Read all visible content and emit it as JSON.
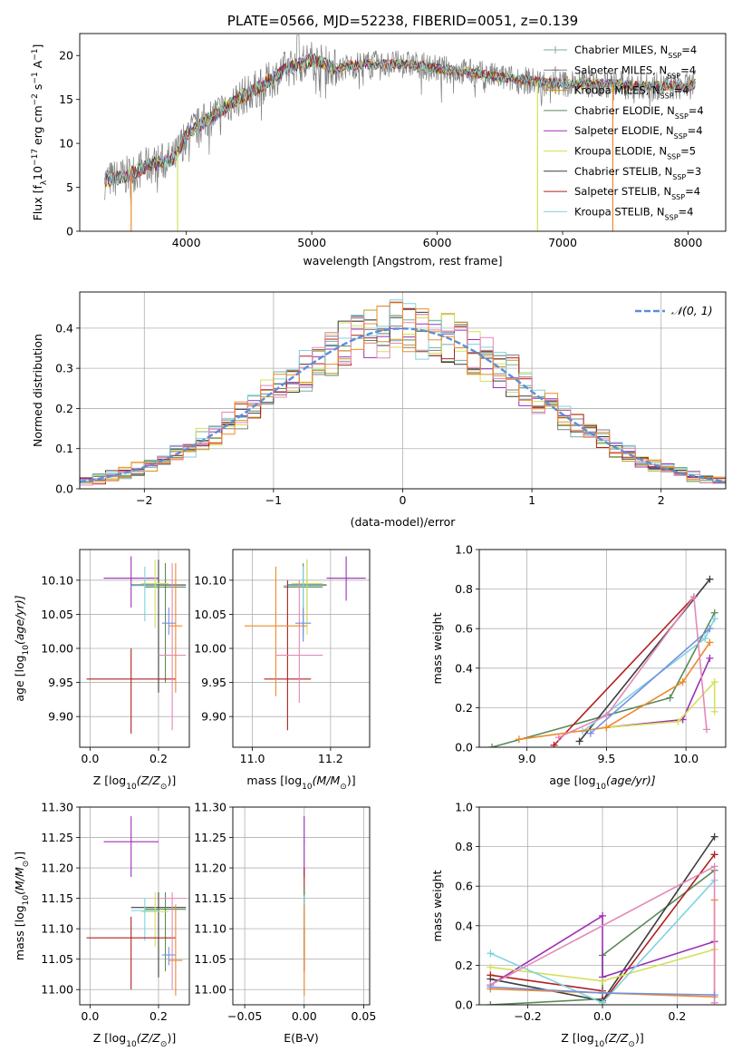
{
  "title": "PLATE=0566, MJD=52238, FIBERID=0051, z=0.139",
  "colors": {
    "Chabrier MILES": "#7fa9a0",
    "Salpeter MILES": "#7f7f7f",
    "Kroupa MILES": "#c8961e",
    "Chabrier ELODIE": "#5a8a5a",
    "Salpeter ELODIE": "#9b30b5",
    "Kroupa ELODIE": "#d4e05a",
    "Chabrier STELIB": "#3d3d3d",
    "Salpeter STELIB": "#b02020",
    "Kroupa STELIB": "#7fd3e0",
    "pink": "#e588b8",
    "orange": "#ee8a2a",
    "blue": "#7590e0",
    "gauss": "#5b8fd6"
  },
  "chart_data": [
    {
      "id": "spectrum",
      "type": "line",
      "title": "PLATE=0566, MJD=52238, FIBERID=0051, z=0.139",
      "xlabel": "wavelength [Angstrom, rest frame]",
      "ylabel_main": "Flux [f",
      "ylabel_tail": "10",
      "ylabel_sup1": "−17",
      "ylabel_mid": " erg cm",
      "ylabel_sup2": "−2",
      "ylabel_mid2": " s",
      "ylabel_sup3": "−1",
      "ylabel_mid3": " A",
      "ylabel_sup4": "−1",
      "ylabel_end": "]",
      "xlim": [
        3150,
        8300
      ],
      "ylim": [
        0,
        22.5
      ],
      "xticks": [
        4000,
        5000,
        6000,
        7000,
        8000
      ],
      "yticks": [
        0,
        5,
        10,
        15,
        20
      ],
      "legend": [
        {
          "name": "Chabrier MILES, N",
          "sub": "SSP",
          "tail": "=4"
        },
        {
          "name": "Salpeter MILES, N",
          "sub": "SSP",
          "tail": "=4"
        },
        {
          "name": "Kroupa MILES, N",
          "sub": "SSP",
          "tail": "=4"
        },
        {
          "name": "Chabrier ELODIE, N",
          "sub": "SSP",
          "tail": "=4"
        },
        {
          "name": "Salpeter ELODIE, N",
          "sub": "SSP",
          "tail": "=4"
        },
        {
          "name": "Kroupa ELODIE, N",
          "sub": "SSP",
          "tail": "=5"
        },
        {
          "name": "Chabrier STELIB, N",
          "sub": "SSP",
          "tail": "=3"
        },
        {
          "name": "Salpeter STELIB, N",
          "sub": "SSP",
          "tail": "=4"
        },
        {
          "name": "Kroupa STELIB, N",
          "sub": "SSP",
          "tail": "=4"
        }
      ],
      "continuum": [
        [
          3350,
          5.8
        ],
        [
          3500,
          6.2
        ],
        [
          3700,
          7.5
        ],
        [
          3900,
          8.2
        ],
        [
          4000,
          11
        ],
        [
          4200,
          13
        ],
        [
          4400,
          15
        ],
        [
          4600,
          16.5
        ],
        [
          4800,
          18.5
        ],
        [
          4900,
          19
        ],
        [
          5000,
          19.5
        ],
        [
          5200,
          18.5
        ],
        [
          5400,
          19
        ],
        [
          5600,
          19
        ],
        [
          5800,
          19
        ],
        [
          6000,
          18.5
        ],
        [
          6200,
          18.2
        ],
        [
          6500,
          17.5
        ],
        [
          6800,
          17
        ],
        [
          7000,
          16.8
        ],
        [
          7300,
          16.8
        ],
        [
          7600,
          16.5
        ],
        [
          8000,
          16.5
        ],
        [
          8060,
          16.8
        ]
      ],
      "drops": [
        3560,
        3930,
        6800,
        7400
      ]
    },
    {
      "id": "residuals",
      "type": "line",
      "xlabel": "(data-model)/error",
      "ylabel": "Normed distribution",
      "xlim": [
        -2.5,
        2.5
      ],
      "ylim": [
        0,
        0.49
      ],
      "xticks": [
        -2,
        -1,
        0,
        1,
        2
      ],
      "yticks": [
        0.0,
        0.1,
        0.2,
        0.3,
        0.4
      ],
      "legend": "𝒩(0, 1)",
      "bin_width": 0.1
    },
    {
      "id": "age-vs-Z",
      "type": "scatter",
      "xlabel": "Z [log",
      "xlabel_sub": "10",
      "xlabel_tail": "(Z/Z",
      "xlabel_sub2": "⊙",
      "xlabel_end": ")]",
      "ylabel": "age  [log",
      "ylabel_sub": "10",
      "ylabel_tail": "(age/yr)]",
      "xlim": [
        -0.03,
        0.29
      ],
      "ylim": [
        9.855,
        10.145
      ],
      "xticks": [
        0.0,
        0.2
      ],
      "yticks": [
        9.9,
        9.95,
        10.0,
        10.05,
        10.1
      ],
      "points": [
        {
          "c": "#9b30b5",
          "x": 0.12,
          "y": 10.103,
          "dx": 0.08,
          "ylo": 10.06,
          "yhi": 10.135
        },
        {
          "c": "#3d3d3d",
          "x": 0.2,
          "y": 10.093,
          "dx": 0.08,
          "ylo": 9.935,
          "yhi": 10.13
        },
        {
          "c": "#5a8a5a",
          "x": 0.22,
          "y": 10.09,
          "dx": 0.06,
          "ylo": 9.95,
          "yhi": 10.125
        },
        {
          "c": "#d4e05a",
          "x": 0.19,
          "y": 10.095,
          "dx": 0.04,
          "ylo": 10.03,
          "yhi": 10.13
        },
        {
          "c": "#7fd3e0",
          "x": 0.16,
          "y": 10.092,
          "dx": 0.04,
          "ylo": 10.04,
          "yhi": 10.12
        },
        {
          "c": "#b02020",
          "x": 0.12,
          "y": 9.955,
          "dx": 0.13,
          "ylo": 9.875,
          "yhi": 10.0
        },
        {
          "c": "#e588b8",
          "x": 0.24,
          "y": 9.99,
          "dx": 0.04,
          "ylo": 9.88,
          "yhi": 10.125
        },
        {
          "c": "#ee8a2a",
          "x": 0.25,
          "y": 10.033,
          "dx": 0.02,
          "ylo": 9.935,
          "yhi": 10.125
        },
        {
          "c": "#7590e0",
          "x": 0.23,
          "y": 10.037,
          "dx": 0.02,
          "ylo": 10.02,
          "yhi": 10.06
        }
      ]
    },
    {
      "id": "age-vs-mass",
      "type": "scatter",
      "xlabel": "mass [log",
      "xlabel_sub": "10",
      "xlabel_tail": "(M/M",
      "xlabel_sub2": "⊙",
      "xlabel_end": ")]",
      "xlim": [
        10.95,
        11.3
      ],
      "ylim": [
        9.855,
        10.145
      ],
      "xticks": [
        11.0,
        11.2
      ],
      "yticks": [
        9.9,
        9.95,
        10.0,
        10.05,
        10.1
      ],
      "points": [
        {
          "c": "#9b30b5",
          "x": 11.24,
          "y": 10.103,
          "dx": 0.05,
          "ylo": 10.07,
          "yhi": 10.135
        },
        {
          "c": "#3d3d3d",
          "x": 11.14,
          "y": 10.093,
          "dx": 0.05,
          "ylo": 10.04,
          "yhi": 10.13
        },
        {
          "c": "#5a8a5a",
          "x": 11.13,
          "y": 10.09,
          "dx": 0.05,
          "ylo": 10.02,
          "yhi": 10.125
        },
        {
          "c": "#d4e05a",
          "x": 11.14,
          "y": 10.095,
          "dx": 0.04,
          "ylo": 10.02,
          "yhi": 10.13
        },
        {
          "c": "#7fd3e0",
          "x": 11.13,
          "y": 10.092,
          "dx": 0.05,
          "ylo": 10.01,
          "yhi": 10.12
        },
        {
          "c": "#b02020",
          "x": 11.09,
          "y": 9.955,
          "dx": 0.06,
          "ylo": 9.88,
          "yhi": 10.1
        },
        {
          "c": "#e588b8",
          "x": 11.12,
          "y": 9.99,
          "dx": 0.06,
          "ylo": 9.92,
          "yhi": 10.1
        },
        {
          "c": "#ee8a2a",
          "x": 11.06,
          "y": 10.033,
          "dx": 0.08,
          "ylo": 9.93,
          "yhi": 10.12
        },
        {
          "c": "#7590e0",
          "x": 11.13,
          "y": 10.037,
          "dx": 0.02,
          "ylo": 10.01,
          "yhi": 10.06
        }
      ]
    },
    {
      "id": "weight-vs-age",
      "type": "line",
      "xlabel": "age  [log",
      "xlabel_sub": "10",
      "xlabel_tail": "(age/yr)]",
      "ylabel": "mass weight",
      "xlim": [
        8.7,
        10.25
      ],
      "ylim": [
        0,
        1.0
      ],
      "xticks": [
        9.0,
        9.5,
        10.0
      ],
      "yticks": [
        0.0,
        0.2,
        0.4,
        0.6,
        0.8,
        1.0
      ],
      "series": [
        {
          "c": "#5a8a5a",
          "pts": [
            [
              8.78,
              0.0
            ],
            [
              9.9,
              0.25
            ],
            [
              10.18,
              0.68
            ]
          ]
        },
        {
          "c": "#3d3d3d",
          "pts": [
            [
              9.33,
              0.03
            ],
            [
              10.15,
              0.85
            ]
          ]
        },
        {
          "c": "#b02020",
          "pts": [
            [
              9.17,
              0.01
            ],
            [
              10.05,
              0.76
            ]
          ]
        },
        {
          "c": "#9b30b5",
          "pts": [
            [
              9.5,
              0.1
            ],
            [
              9.98,
              0.14
            ],
            [
              10.15,
              0.45
            ]
          ]
        },
        {
          "c": "#d4e05a",
          "pts": [
            [
              9.5,
              0.1
            ],
            [
              9.95,
              0.13
            ],
            [
              10.18,
              0.33
            ],
            [
              10.18,
              0.18
            ]
          ]
        },
        {
          "c": "#7fd3e0",
          "pts": [
            [
              9.35,
              0.08
            ],
            [
              10.12,
              0.55
            ],
            [
              10.18,
              0.65
            ]
          ]
        },
        {
          "c": "#ee8a2a",
          "pts": [
            [
              8.95,
              0.04
            ],
            [
              9.5,
              0.1
            ],
            [
              9.98,
              0.33
            ],
            [
              10.15,
              0.53
            ]
          ]
        },
        {
          "c": "#e588b8",
          "pts": [
            [
              9.2,
              0.05
            ],
            [
              9.5,
              0.16
            ],
            [
              10.05,
              0.76
            ],
            [
              10.13,
              0.09
            ]
          ]
        },
        {
          "c": "#7590e0",
          "pts": [
            [
              9.4,
              0.07
            ],
            [
              10.15,
              0.6
            ]
          ]
        }
      ]
    },
    {
      "id": "mass-vs-Z",
      "type": "scatter",
      "xlabel": "Z [log",
      "xlabel_sub": "10",
      "xlabel_tail": "(Z/Z",
      "xlabel_sub2": "⊙",
      "xlabel_end": ")]",
      "ylabel": "mass [log",
      "ylabel_sub": "10",
      "ylabel_tail": "(M/M",
      "ylabel_sub2": "⊙",
      "ylabel_end": ")]",
      "xlim": [
        -0.03,
        0.29
      ],
      "ylim": [
        10.975,
        11.3
      ],
      "xticks": [
        0.0,
        0.2
      ],
      "yticks": [
        11.0,
        11.05,
        11.1,
        11.15,
        11.2,
        11.25,
        11.3
      ],
      "points": [
        {
          "c": "#9b30b5",
          "x": 0.12,
          "y": 11.243,
          "dx": 0.08,
          "ylo": 11.185,
          "yhi": 11.285
        },
        {
          "c": "#3d3d3d",
          "x": 0.2,
          "y": 11.135,
          "dx": 0.08,
          "ylo": 11.02,
          "yhi": 11.16
        },
        {
          "c": "#5a8a5a",
          "x": 0.22,
          "y": 11.132,
          "dx": 0.06,
          "ylo": 11.03,
          "yhi": 11.16
        },
        {
          "c": "#d4e05a",
          "x": 0.19,
          "y": 11.128,
          "dx": 0.04,
          "ylo": 11.07,
          "yhi": 11.16
        },
        {
          "c": "#7fd3e0",
          "x": 0.16,
          "y": 11.13,
          "dx": 0.04,
          "ylo": 11.08,
          "yhi": 11.15
        },
        {
          "c": "#b02020",
          "x": 0.12,
          "y": 11.085,
          "dx": 0.13,
          "ylo": 11.0,
          "yhi": 11.12
        },
        {
          "c": "#e588b8",
          "x": 0.24,
          "y": 11.15,
          "dx": 0.04,
          "ylo": 11.0,
          "yhi": 11.16
        },
        {
          "c": "#ee8a2a",
          "x": 0.25,
          "y": 11.048,
          "dx": 0.02,
          "ylo": 10.99,
          "yhi": 11.14
        },
        {
          "c": "#7590e0",
          "x": 0.23,
          "y": 11.057,
          "dx": 0.02,
          "ylo": 11.04,
          "yhi": 11.07
        }
      ]
    },
    {
      "id": "mass-vs-ebv",
      "type": "scatter",
      "xlabel": "E(B-V)",
      "xlim": [
        -0.06,
        0.055
      ],
      "ylim": [
        10.975,
        11.3
      ],
      "xticks": [
        -0.05,
        0.0,
        0.05
      ],
      "yticks": [
        11.0,
        11.05,
        11.1,
        11.15,
        11.2,
        11.25,
        11.3
      ],
      "points": [
        {
          "c": "#9b30b5",
          "x": 0,
          "y": 11.243,
          "dx": 0.0005,
          "ylo": 11.185,
          "yhi": 11.285
        },
        {
          "c": "#b02020",
          "x": 0,
          "y": 11.085,
          "dx": 0.0005,
          "ylo": 11.03,
          "yhi": 11.2
        },
        {
          "c": "#5a8a5a",
          "x": 0,
          "y": 11.13,
          "dx": 0.0005,
          "ylo": 11.05,
          "yhi": 11.17
        },
        {
          "c": "#7fd3e0",
          "x": 0,
          "y": 11.13,
          "dx": 0.0005,
          "ylo": 11.1,
          "yhi": 11.155
        },
        {
          "c": "#ee8a2a",
          "x": 0,
          "y": 11.05,
          "dx": 0.0005,
          "ylo": 10.99,
          "yhi": 11.14
        }
      ]
    },
    {
      "id": "weight-vs-Z",
      "type": "line",
      "xlabel": "Z [log",
      "xlabel_sub": "10",
      "xlabel_tail": "(Z/Z",
      "xlabel_sub2": "⊙",
      "xlabel_end": ")]",
      "ylabel": "mass weight",
      "xlim": [
        -0.33,
        0.33
      ],
      "ylim": [
        0,
        1.0
      ],
      "xticks": [
        -0.2,
        0.0,
        0.2
      ],
      "yticks": [
        0.0,
        0.2,
        0.4,
        0.6,
        0.8,
        1.0
      ],
      "series": [
        {
          "c": "#5a8a5a",
          "pts": [
            [
              -0.3,
              0.0
            ],
            [
              0.0,
              0.03
            ],
            [
              0.0,
              0.25
            ],
            [
              0.3,
              0.68
            ]
          ]
        },
        {
          "c": "#3d3d3d",
          "pts": [
            [
              -0.3,
              0.13
            ],
            [
              0.0,
              0.02
            ],
            [
              0.3,
              0.85
            ]
          ]
        },
        {
          "c": "#b02020",
          "pts": [
            [
              -0.3,
              0.15
            ],
            [
              0.0,
              0.07
            ],
            [
              0.0,
              0.01
            ],
            [
              0.3,
              0.76
            ]
          ]
        },
        {
          "c": "#9b30b5",
          "pts": [
            [
              -0.3,
              0.1
            ],
            [
              0.0,
              0.45
            ],
            [
              0.0,
              0.14
            ],
            [
              0.3,
              0.32
            ]
          ]
        },
        {
          "c": "#d4e05a",
          "pts": [
            [
              -0.3,
              0.19
            ],
            [
              0.0,
              0.12
            ],
            [
              0.3,
              0.28
            ]
          ]
        },
        {
          "c": "#7fd3e0",
          "pts": [
            [
              -0.3,
              0.26
            ],
            [
              0.0,
              0.01
            ],
            [
              0.3,
              0.63
            ]
          ]
        },
        {
          "c": "#ee8a2a",
          "pts": [
            [
              -0.3,
              0.08
            ],
            [
              0.0,
              0.06
            ],
            [
              0.3,
              0.04
            ],
            [
              0.3,
              0.53
            ]
          ]
        },
        {
          "c": "#e588b8",
          "pts": [
            [
              -0.3,
              0.1
            ],
            [
              0.3,
              0.7
            ],
            [
              0.3,
              0.01
            ]
          ]
        },
        {
          "c": "#7590e0",
          "pts": [
            [
              -0.3,
              0.09
            ],
            [
              0.0,
              0.06
            ],
            [
              0.3,
              0.05
            ]
          ]
        }
      ]
    }
  ]
}
